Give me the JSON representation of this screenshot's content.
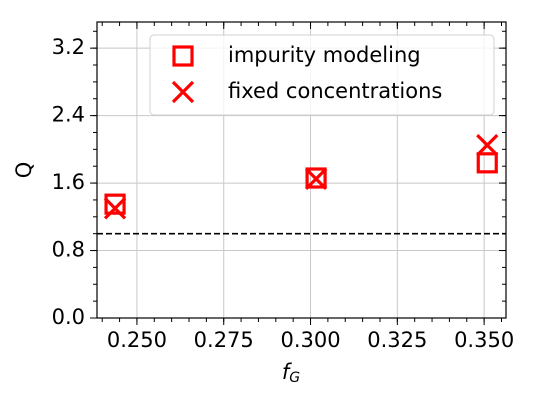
{
  "chart_data": {
    "type": "scatter",
    "xlabel": {
      "base": "f",
      "sub": "G"
    },
    "ylabel": "Q",
    "xlim": [
      0.2385,
      0.3563
    ],
    "ylim": [
      0,
      3.51
    ],
    "xticks": [
      {
        "value": 0.25,
        "label": "0.250"
      },
      0.275,
      {
        "value": 0.3,
        "label": "0.300"
      },
      0.325,
      {
        "value": 0.35,
        "label": "0.350"
      }
    ],
    "yticks": [
      {
        "value": 0,
        "label": "0.0"
      },
      0.8,
      1.6,
      2.4,
      3.2
    ],
    "grid": true,
    "legend": "upper right",
    "hline": {
      "value": 1.0,
      "color": "#000000"
    },
    "series": [
      {
        "name": "impurity modeling",
        "marker": "square",
        "color": "#ff0000",
        "x": [
          0.2437,
          0.3016,
          0.3509
        ],
        "values": [
          1.35,
          1.66,
          1.84
        ]
      },
      {
        "name": "fixed concentrations",
        "marker": "x",
        "color": "#ff0000",
        "x": [
          0.2437,
          0.3016,
          0.3509
        ],
        "values": [
          1.3,
          1.65,
          2.05
        ]
      }
    ]
  }
}
